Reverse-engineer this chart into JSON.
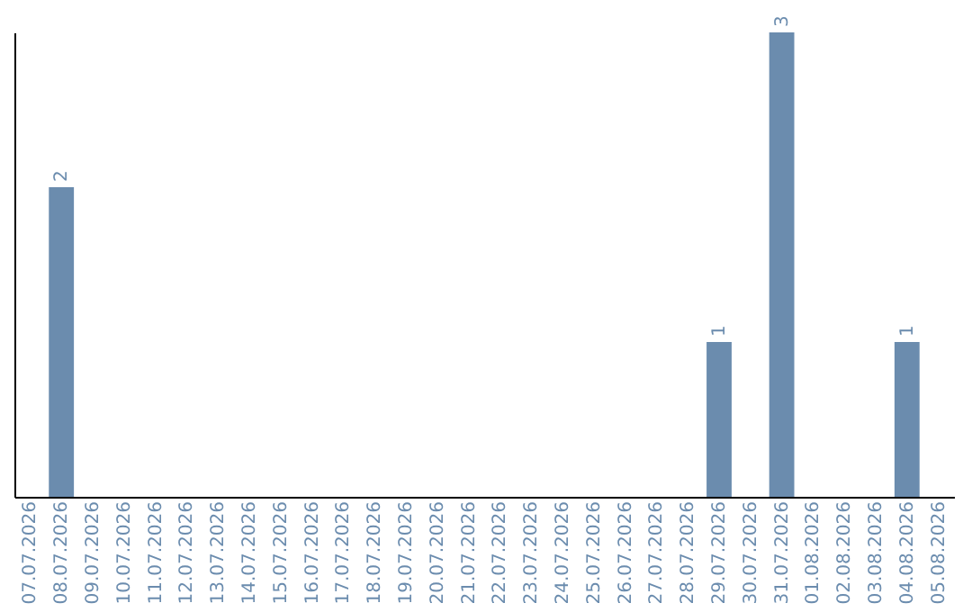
{
  "chart_data": {
    "type": "bar",
    "categories": [
      "07.07.2026",
      "08.07.2026",
      "09.07.2026",
      "10.07.2026",
      "11.07.2026",
      "12.07.2026",
      "13.07.2026",
      "14.07.2026",
      "15.07.2026",
      "16.07.2026",
      "17.07.2026",
      "18.07.2026",
      "19.07.2026",
      "20.07.2026",
      "21.07.2026",
      "22.07.2026",
      "23.07.2026",
      "24.07.2026",
      "25.07.2026",
      "26.07.2026",
      "27.07.2026",
      "28.07.2026",
      "29.07.2026",
      "30.07.2026",
      "31.07.2026",
      "01.08.2026",
      "02.08.2026",
      "03.08.2026",
      "04.08.2026",
      "05.08.2026"
    ],
    "values": [
      0,
      2,
      0,
      0,
      0,
      0,
      0,
      0,
      0,
      0,
      0,
      0,
      0,
      0,
      0,
      0,
      0,
      0,
      0,
      0,
      0,
      0,
      1,
      0,
      3,
      0,
      0,
      0,
      1,
      0
    ],
    "value_labels": [
      null,
      "2",
      null,
      null,
      null,
      null,
      null,
      null,
      null,
      null,
      null,
      null,
      null,
      null,
      null,
      null,
      null,
      null,
      null,
      null,
      null,
      null,
      "1",
      null,
      "3",
      null,
      null,
      null,
      "1",
      null
    ],
    "color": "#6b8cae",
    "tick_labels": "x",
    "grid": false
  }
}
